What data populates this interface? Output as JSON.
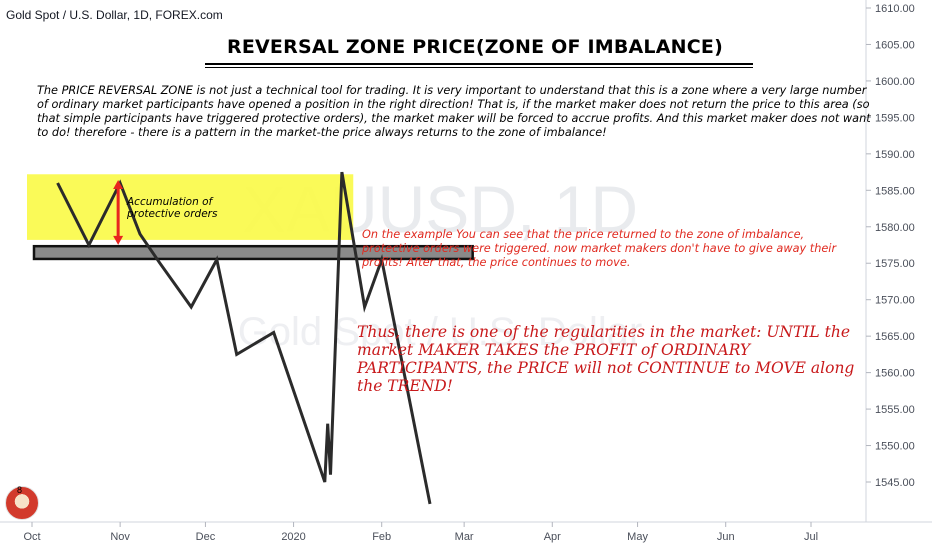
{
  "header": {
    "symbol": "Gold Spot / U.S. Dollar, 1D, FOREX.com"
  },
  "watermark": {
    "ticker": "XAUUSD, 1D",
    "name": "Gold Spot / U.S. Dollar"
  },
  "annotations": {
    "title": "REVERSAL ZONE PRICE(ZONE OF IMBALANCE)",
    "paragraph": "The PRICE REVERSAL ZONE is not just a technical tool for trading. It is very important to understand that this is a zone where a very large number of ordinary market participants have opened a position in the right direction! That is, if the market maker does not return the price to this area (so that simple participants have triggered protective orders), the market maker will be forced to accrue profits. And this market maker does not want to do! therefore - there is a pattern in the market-the price always returns to the zone of imbalance!",
    "accumulation": "Accumulation of protective orders",
    "example": "On the example You can see that the price returned to the zone of imbalance, protective orders were triggered. now market makers don't have to give away their profits! After that, the price continues to move.",
    "thus": "Thus, there is one of the regularities in the market: UNTIL the market MAKER TAKES the PROFIT of ORDINARY PARTICIPANTS, the PRICE will not CONTINUE to MOVE along the TREND!"
  },
  "avatar": {
    "badge": "8"
  },
  "colors": {
    "zone_fill": "#fafa4a",
    "line": "#2b2b2b",
    "arrow": "#e8251f",
    "red_text": "#e02a20",
    "dark_red_text": "#c8191b"
  },
  "chart_data": {
    "type": "line",
    "y_axis": {
      "min": 1540,
      "max": 1610,
      "step": 5,
      "position": "right"
    },
    "x_axis": {
      "labels": [
        "Oct",
        "Nov",
        "Dec",
        "2020",
        "Feb",
        "Mar",
        "Apr",
        "May",
        "Jun",
        "Jul"
      ]
    },
    "series": [
      {
        "values": [
          {
            "x": "2019-10-10",
            "y": 1586
          },
          {
            "x": "2019-10-21",
            "y": 1577.5
          },
          {
            "x": "2019-11-01",
            "y": 1586
          },
          {
            "x": "2019-11-08",
            "y": 1579
          },
          {
            "x": "2019-11-15",
            "y": 1575
          },
          {
            "x": "2019-11-26",
            "y": 1569
          },
          {
            "x": "2019-12-05",
            "y": 1575.5
          },
          {
            "x": "2019-12-12",
            "y": 1562.5
          },
          {
            "x": "2019-12-25",
            "y": 1565.5
          },
          {
            "x": "2020-01-12",
            "y": 1545
          },
          {
            "x": "2020-01-13",
            "y": 1553
          },
          {
            "x": "2020-01-14",
            "y": 1546
          },
          {
            "x": "2020-01-18",
            "y": 1587.5
          },
          {
            "x": "2020-01-26",
            "y": 1569
          },
          {
            "x": "2020-02-01",
            "y": 1575.5
          },
          {
            "x": "2020-02-18",
            "y": 1542
          }
        ]
      }
    ],
    "zones": [
      {
        "label": "zone of imbalance",
        "y_low": 1576,
        "y_high": 1577.2,
        "x_start": "2019-10-01",
        "x_end": "2020-03-04"
      },
      {
        "label": "accumulation of protective orders",
        "y_low": 1578.2,
        "y_high": 1587.2,
        "x_start": "2019-10-01",
        "x_end": "2020-01-22"
      }
    ],
    "arrow": {
      "x": "2019-11-01",
      "y_from": 1586,
      "y_to": 1578.2
    }
  }
}
